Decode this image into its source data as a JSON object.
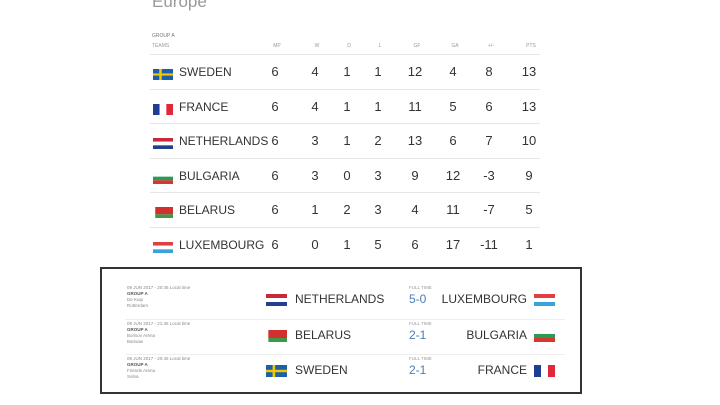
{
  "title": "Europe",
  "group": "GROUP A",
  "headers": [
    "TEAMS",
    "MP",
    "W",
    "D",
    "L",
    "GF",
    "GA",
    "+/-",
    "PTS"
  ],
  "standings": [
    {
      "team": "SWEDEN",
      "flag": "sweden-flag",
      "stats": [
        "6",
        "4",
        "1",
        "1",
        "12",
        "4",
        "8",
        "13"
      ]
    },
    {
      "team": "FRANCE",
      "flag": "france-flag",
      "stats": [
        "6",
        "4",
        "1",
        "1",
        "11",
        "5",
        "6",
        "13"
      ]
    },
    {
      "team": "NETHERLANDS",
      "flag": "netherlands-flag",
      "stats": [
        "6",
        "3",
        "1",
        "2",
        "13",
        "6",
        "7",
        "10"
      ]
    },
    {
      "team": "BULGARIA",
      "flag": "bulgaria-flag",
      "stats": [
        "6",
        "3",
        "0",
        "3",
        "9",
        "12",
        "-3",
        "9"
      ]
    },
    {
      "team": "BELARUS",
      "flag": "belarus-flag",
      "stats": [
        "6",
        "1",
        "2",
        "3",
        "4",
        "11",
        "-7",
        "5"
      ]
    },
    {
      "team": "LUXEMBOURG",
      "flag": "luxembourg-flag",
      "stats": [
        "6",
        "0",
        "1",
        "5",
        "6",
        "17",
        "-11",
        "1"
      ]
    }
  ],
  "matches": [
    {
      "datetime": "09 JUN 2017 - 20:45 Local time",
      "group": "GROUP A",
      "venue": "De Kuip",
      "city": "Rotterdam",
      "status": "FULL TIME",
      "home": "NETHERLANDS",
      "home_flag": "netherlands-flag",
      "score": "5-0",
      "away": "LUXEMBOURG",
      "away_flag": "luxembourg-flag"
    },
    {
      "datetime": "09 JUN 2017 - 21:45 Local time",
      "group": "GROUP A",
      "venue": "Borisov Arena",
      "city": "Barisaw",
      "status": "FULL TIME",
      "home": "BELARUS",
      "home_flag": "belarus-flag",
      "score": "2-1",
      "away": "BULGARIA",
      "away_flag": "bulgaria-flag"
    },
    {
      "datetime": "09 JUN 2017 - 20:45 Local time",
      "group": "GROUP A",
      "venue": "Friends Arena",
      "city": "Solna",
      "status": "FULL TIME",
      "home": "SWEDEN",
      "home_flag": "sweden-flag",
      "score": "2-1",
      "away": "FRANCE",
      "away_flag": "france-flag"
    }
  ]
}
